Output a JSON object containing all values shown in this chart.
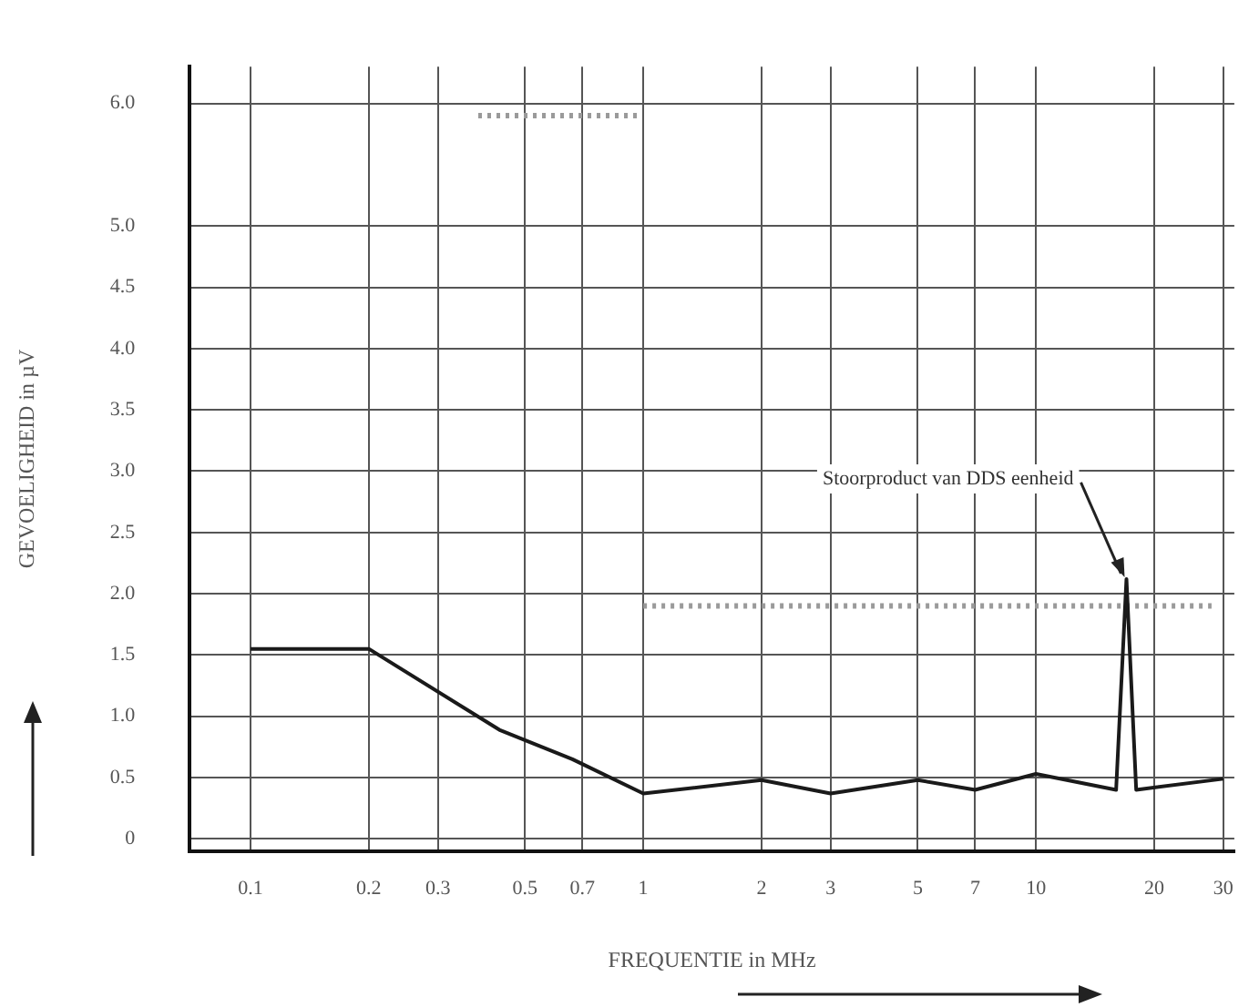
{
  "chart_data": {
    "type": "line",
    "xlabel": "FREQUENTIE in MHz",
    "ylabel": "GEVOELIGHEID in µV",
    "log": "x",
    "xlim": [
      0.07,
      32
    ],
    "xticks": [
      0.1,
      0.2,
      0.3,
      0.5,
      0.7,
      1,
      2,
      3,
      5,
      7,
      10,
      20,
      30
    ],
    "ylim": [
      -0.1,
      6.3
    ],
    "yticks": [
      0,
      0.5,
      {
        "value": 1,
        "label": "1.0"
      },
      1.5,
      {
        "value": 2,
        "label": "2.0"
      },
      2.5,
      {
        "value": 3,
        "label": "3.0"
      },
      3.5,
      {
        "value": 4,
        "label": "4.0"
      },
      4.5,
      {
        "value": 5,
        "label": "5.0"
      },
      {
        "value": 6,
        "label": "6.0"
      }
    ],
    "grid": true,
    "legend": false,
    "marker": "none",
    "series": [
      {
        "color": "#1a1a1a",
        "x": [
          0.1,
          0.2,
          0.43,
          0.66,
          1,
          2,
          3,
          5,
          7,
          10,
          16,
          17,
          18,
          30
        ],
        "values": [
          1.55,
          1.55,
          0.89,
          0.65,
          0.37,
          0.48,
          0.37,
          0.48,
          0.4,
          0.53,
          0.4,
          2.12,
          0.4,
          0.49
        ]
      },
      {
        "color": "#9a9a9a",
        "line_style": "dotted",
        "x": [
          0.38,
          0.98
        ],
        "values": [
          5.9,
          5.9
        ]
      },
      {
        "color": "#9a9a9a",
        "line_style": "dotted",
        "x": [
          1,
          28
        ],
        "values": [
          1.9,
          1.9
        ]
      }
    ],
    "annotations": [
      {
        "text": "Stoorproduct van DDS eenheid",
        "x": 17,
        "y": 2.12
      }
    ]
  }
}
